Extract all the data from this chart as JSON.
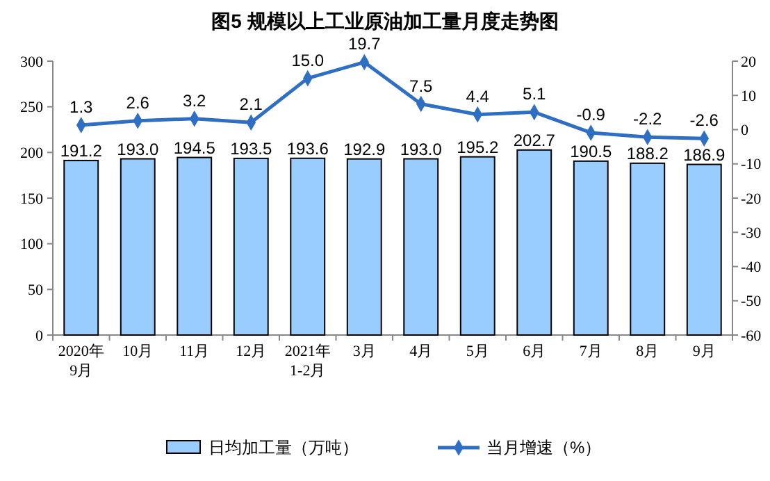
{
  "chart_data": {
    "type": "bar",
    "title": "图5  规模以上工业原油加工量月度走势图",
    "categories": [
      "2020年\n9月",
      "10月",
      "11月",
      "12月",
      "2021年\n1-2月",
      "3月",
      "4月",
      "5月",
      "6月",
      "7月",
      "8月",
      "9月"
    ],
    "series": [
      {
        "name": "日均加工量（万吨）",
        "color": "#99ccff",
        "values": [
          191.2,
          193.0,
          194.5,
          193.5,
          193.6,
          192.9,
          193.0,
          195.2,
          202.7,
          190.5,
          188.2,
          186.9
        ],
        "value_labels": [
          "191.2",
          "193.0",
          "194.5",
          "193.5",
          "193.6",
          "192.9",
          "193.0",
          "195.2",
          "202.7",
          "190.5",
          "188.2",
          "186.9"
        ]
      },
      {
        "name": "当月增速（%）",
        "type": "line",
        "axis": "y2",
        "color": "#2e6fc4",
        "marker": "diamond",
        "values": [
          1.3,
          2.6,
          3.2,
          2.1,
          15.0,
          19.7,
          7.5,
          4.4,
          5.1,
          -0.9,
          -2.2,
          -2.6
        ],
        "value_labels": [
          "1.3",
          "2.6",
          "3.2",
          "2.1",
          "15.0",
          "19.7",
          "7.5",
          "4.4",
          "5.1",
          "-0.9",
          "-2.2",
          "-2.6"
        ]
      }
    ],
    "ylim": [
      0,
      300
    ],
    "yticks": [
      0,
      50,
      100,
      150,
      200,
      250,
      300
    ],
    "y2lim": [
      -60,
      20
    ],
    "y2ticks": [
      -60,
      -50,
      -40,
      -30,
      -20,
      -10,
      0,
      10,
      20
    ],
    "legend": "bottom",
    "grid": false
  }
}
